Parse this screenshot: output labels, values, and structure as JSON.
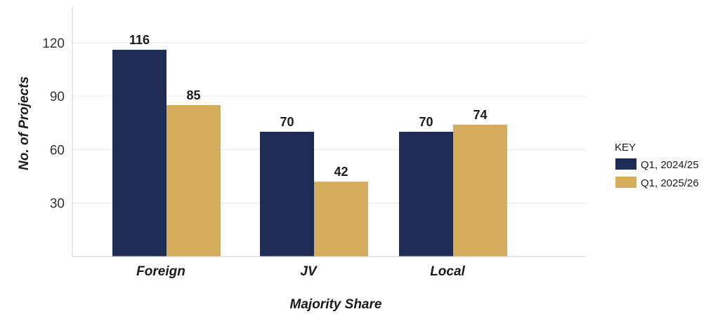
{
  "chart_data": {
    "type": "bar",
    "categories": [
      "Foreign",
      "JV",
      "Local"
    ],
    "series": [
      {
        "name": "Q1, 2024/25",
        "values": [
          116,
          70,
          70
        ],
        "color": "#1f2d55"
      },
      {
        "name": "Q1, 2025/26",
        "values": [
          85,
          42,
          74
        ],
        "color": "#d4ac5b"
      }
    ],
    "xlabel": "Majority Share",
    "ylabel": "No. of Projects",
    "yticks": [
      30,
      60,
      90,
      120
    ],
    "ylim": [
      0,
      140
    ],
    "grid": true,
    "legend": {
      "title": "KEY",
      "placement": "right"
    }
  }
}
